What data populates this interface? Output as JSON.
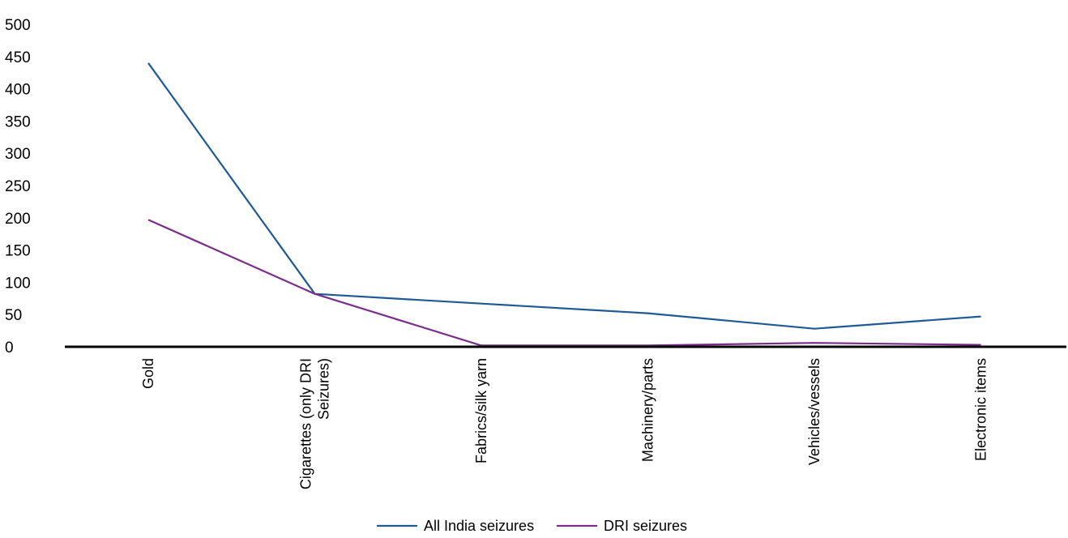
{
  "chart_data": {
    "type": "line",
    "title": "",
    "xlabel": "",
    "ylabel": "",
    "categories": [
      [
        "Gold"
      ],
      [
        "Cigarettes (only DRI",
        "Seizures)"
      ],
      [
        "Fabrics/silk yarn"
      ],
      [
        "Machinery/parts"
      ],
      [
        "Vehicles/vessels"
      ],
      [
        "Electronic items"
      ]
    ],
    "ylim": [
      0,
      500
    ],
    "yticks": [
      0,
      50,
      100,
      150,
      200,
      250,
      300,
      350,
      400,
      450,
      500
    ],
    "grid": false,
    "legend_position": "bottom",
    "series": [
      {
        "name": "All India seizures",
        "color": "#1f5a96",
        "values": [
          440,
          82,
          67,
          52,
          28,
          47
        ]
      },
      {
        "name": "DRI seizures",
        "color": "#7b2d8b",
        "values": [
          197,
          82,
          2,
          2,
          6,
          3
        ]
      }
    ]
  }
}
